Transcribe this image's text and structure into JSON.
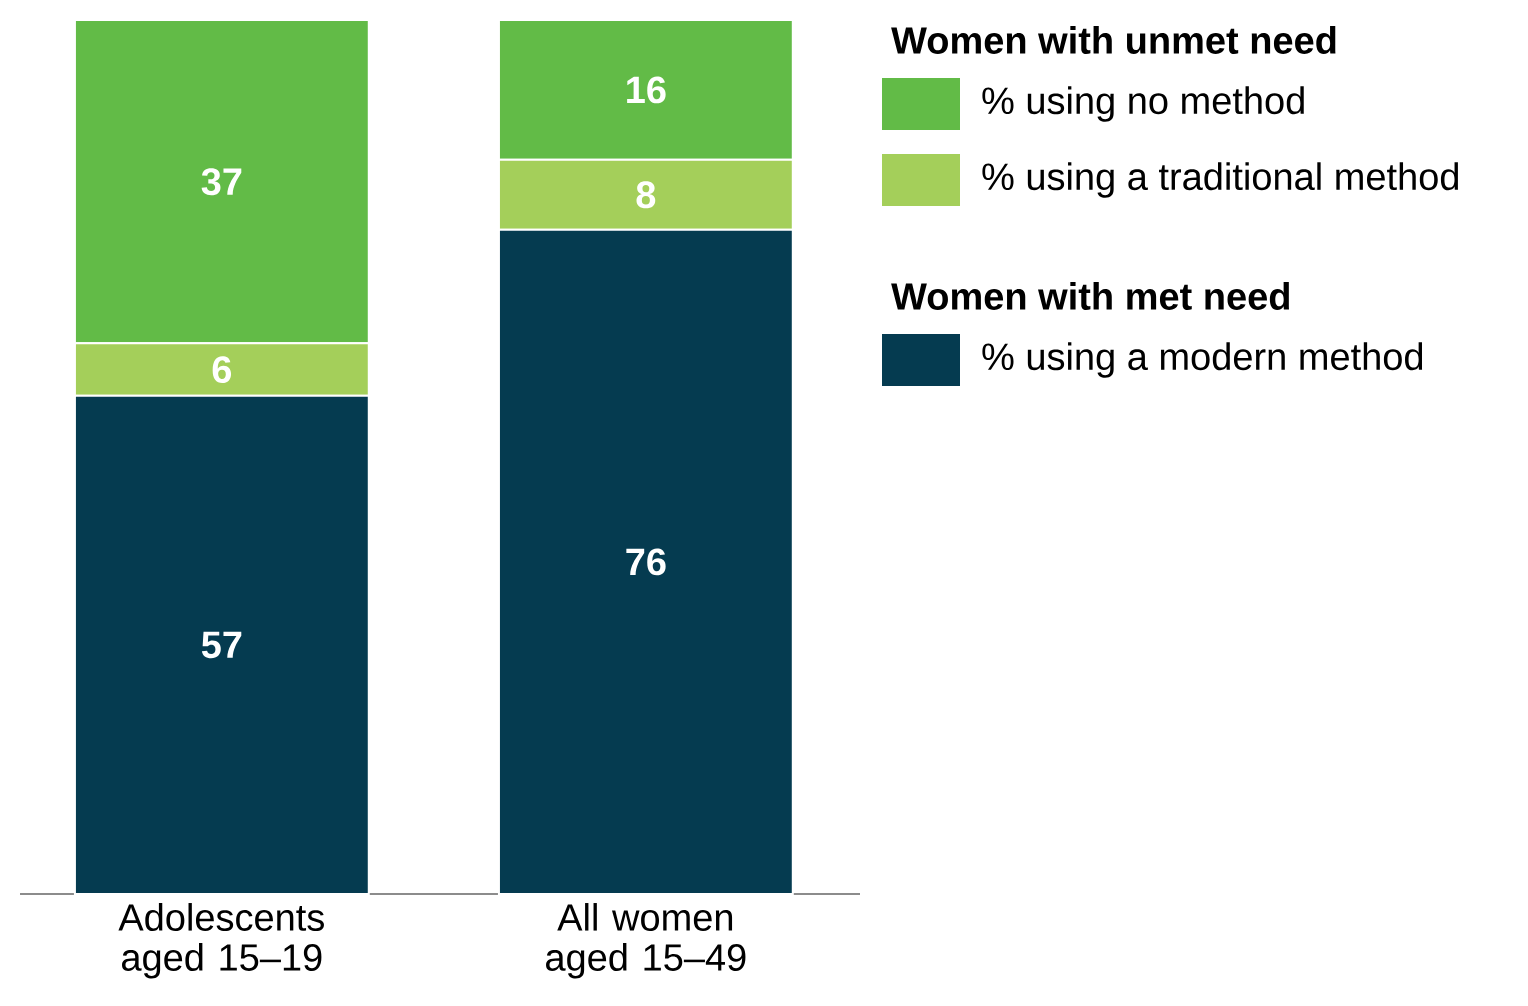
{
  "chart_data": {
    "type": "bar",
    "stacked": true,
    "data_labels": true,
    "legend": "right",
    "categories": [
      "Adolescents aged 15–19",
      "All women aged 15–49"
    ],
    "series": [
      {
        "name": "% using a modern method",
        "color": "#053b50",
        "values": [
          57,
          76
        ]
      },
      {
        "name": "% using a traditional method",
        "color": "#a4cf5a",
        "values": [
          6,
          8
        ]
      },
      {
        "name": "% using no method",
        "color": "#62bb47",
        "values": [
          37,
          16
        ]
      }
    ],
    "annotations": [
      "Women with unmet need",
      "Women with met need"
    ]
  }
}
